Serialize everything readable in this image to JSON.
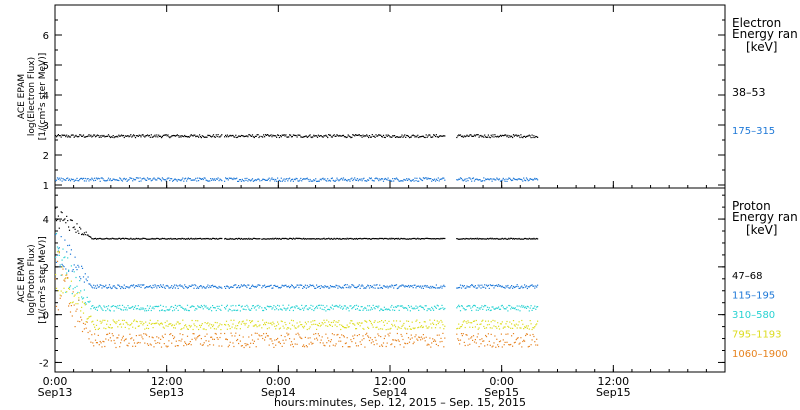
{
  "chart_data": [
    {
      "type": "scatter",
      "panel": "electron",
      "ylabel_lines": [
        "ACE EPAM",
        "log(Electron Flux)",
        "[1/(cm²s ster MeV)]"
      ],
      "ylim": [
        0.9,
        7
      ],
      "yticks": [
        "1",
        "2",
        "3",
        "4",
        "5",
        "6"
      ],
      "legend_title": [
        "Electron",
        "Energy ran",
        "[keV]"
      ],
      "series": [
        {
          "name": "38–53",
          "color": "#000000",
          "level": 2.65,
          "noise": 0.05
        },
        {
          "name": "175–315",
          "color": "#1e78d7",
          "level": 1.2,
          "noise": 0.06
        }
      ]
    },
    {
      "type": "scatter",
      "panel": "proton",
      "ylabel_lines": [
        "ACE EPAM",
        "log(Proton Flux)",
        "[1/(cm²s ster MeV)]"
      ],
      "ylim": [
        -2.4,
        5.3
      ],
      "yticks": [
        "-2",
        "0",
        "2",
        "4"
      ],
      "legend_title": [
        "Proton",
        "Energy ran",
        "[keV]"
      ],
      "series": [
        {
          "name": "47–68",
          "color": "#000000",
          "level": 3.2,
          "noise": 0.02
        },
        {
          "name": "115–195",
          "color": "#1e78d7",
          "level": 1.2,
          "noise": 0.08
        },
        {
          "name": "310–580",
          "color": "#28d2d2",
          "level": 0.3,
          "noise": 0.12
        },
        {
          "name": "795–1193",
          "color": "#dcdc1e",
          "level": -0.4,
          "noise": 0.2
        },
        {
          "name": "1060–1900",
          "color": "#e6821e",
          "level": -1.05,
          "noise": 0.3
        }
      ]
    }
  ],
  "x_axis": {
    "range_hours": [
      0,
      72
    ],
    "data_end_hour": 51.8,
    "gaps_hours": [
      [
        17.9,
        18.1
      ],
      [
        22.0,
        22.15
      ],
      [
        41.9,
        43.1
      ]
    ],
    "ticks": [
      {
        "time": "0:00",
        "date": "Sep13",
        "hour": 0
      },
      {
        "time": "12:00",
        "date": "Sep13",
        "hour": 12
      },
      {
        "time": "0:00",
        "date": "Sep14",
        "hour": 24
      },
      {
        "time": "12:00",
        "date": "Sep14",
        "hour": 36
      },
      {
        "time": "0:00",
        "date": "Sep15",
        "hour": 48
      },
      {
        "time": "12:00",
        "date": "Sep15",
        "hour": 60
      }
    ],
    "title": "hours:minutes, Sep. 12, 2015 – Sep. 15, 2015"
  }
}
